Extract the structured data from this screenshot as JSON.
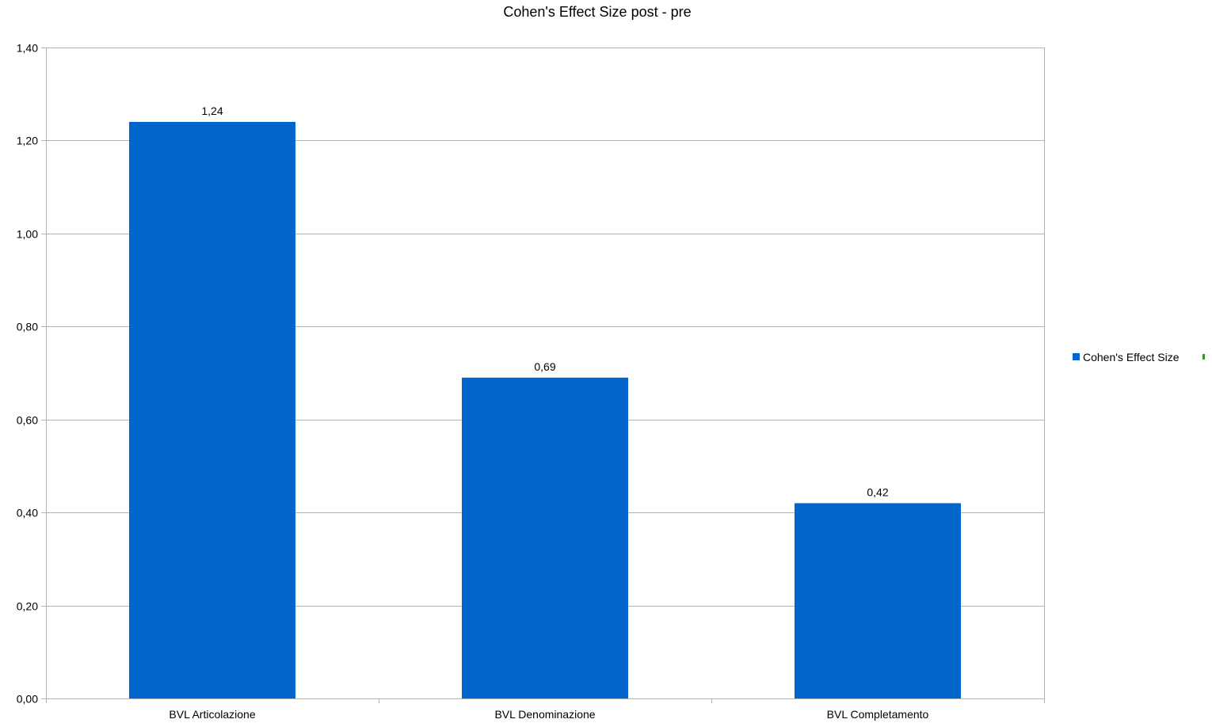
{
  "chart_data": {
    "type": "bar",
    "title": "Cohen's Effect Size post - pre",
    "xlabel": "",
    "ylabel": "",
    "categories": [
      "BVL Articolazione",
      "BVL Denominazione",
      "BVL Completamento"
    ],
    "series": [
      {
        "name": "Cohen's Effect Size",
        "values": [
          1.24,
          0.69,
          0.42
        ],
        "data_labels": [
          "1,24",
          "0,69",
          "0,42"
        ],
        "color": "#0066cc"
      }
    ],
    "ylim": [
      0,
      1.4
    ],
    "y_ticks": [
      0,
      0.2,
      0.4,
      0.6,
      0.8,
      1.0,
      1.2,
      1.4
    ],
    "y_tick_labels": [
      "0,00",
      "0,20",
      "0,40",
      "0,60",
      "0,80",
      "1,00",
      "1,20",
      "1,40"
    ],
    "grid": true,
    "legend_position": "right",
    "gridline_color": "#b3b3b3",
    "axis_color": "#b3b3b3"
  }
}
